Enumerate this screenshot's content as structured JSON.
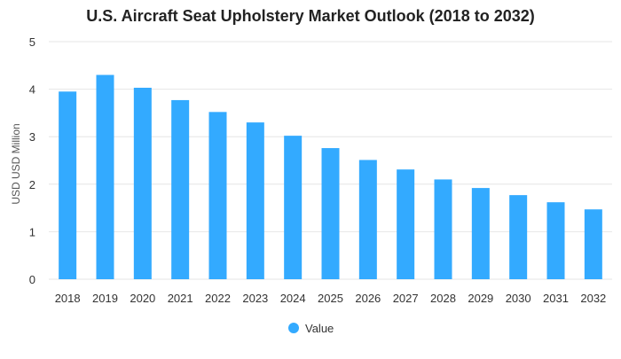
{
  "chart_data": {
    "type": "bar",
    "title": "U.S. Aircraft Seat Upholstery Market Outlook (2018 to 2032)",
    "ylabel": "USD USD Million",
    "xlabel": "",
    "categories": [
      "2018",
      "2019",
      "2020",
      "2021",
      "2022",
      "2023",
      "2024",
      "2025",
      "2026",
      "2027",
      "2028",
      "2029",
      "2030",
      "2031",
      "2032"
    ],
    "series": [
      {
        "name": "Value",
        "values": [
          3.95,
          4.3,
          4.03,
          3.77,
          3.52,
          3.3,
          3.02,
          2.76,
          2.51,
          2.31,
          2.1,
          1.92,
          1.77,
          1.62,
          1.47
        ]
      }
    ],
    "ylim": [
      0,
      5
    ],
    "yticks": [
      "0",
      "1",
      "2",
      "3",
      "4",
      "5"
    ],
    "grid": true,
    "legend_position": "bottom",
    "colors": {
      "bar": "#33aaff",
      "grid": "#e6e6e6"
    }
  }
}
